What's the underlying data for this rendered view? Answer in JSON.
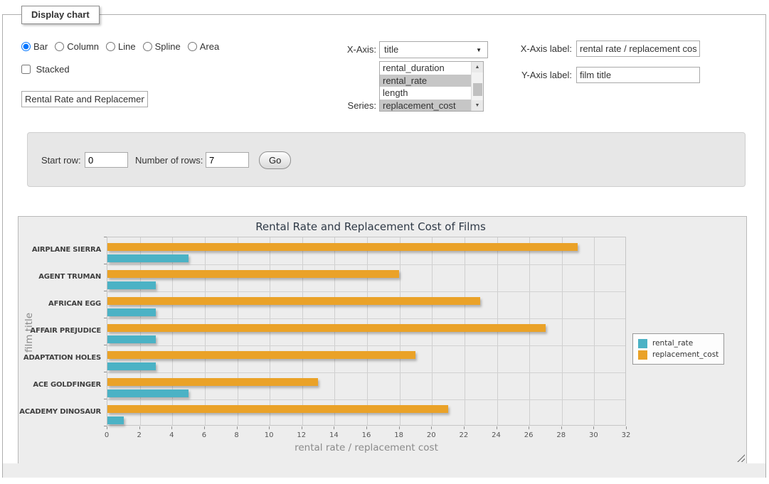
{
  "panel_legend": "Display chart",
  "icons": {
    "dropdown": "▼",
    "scroll_up": "▲",
    "scroll_down": "▼"
  },
  "controls": {
    "chart_types": [
      {
        "label": "Bar",
        "selected": true
      },
      {
        "label": "Column",
        "selected": false
      },
      {
        "label": "Line",
        "selected": false
      },
      {
        "label": "Spline",
        "selected": false
      },
      {
        "label": "Area",
        "selected": false
      }
    ],
    "stacked": {
      "label": "Stacked",
      "checked": false
    },
    "chart_title_input": {
      "value": "Rental Rate and Replacement Cost of Films"
    },
    "x_axis": {
      "label": "X-Axis:",
      "selected_option": "title"
    },
    "series_select": {
      "label": "Series:",
      "options": [
        {
          "label": "rental_duration",
          "selected": false
        },
        {
          "label": "rental_rate",
          "selected": true
        },
        {
          "label": "length",
          "selected": false
        },
        {
          "label": "replacement_cost",
          "selected": true
        }
      ]
    },
    "x_axis_label_field": {
      "label": "X-Axis label:",
      "value": "rental rate / replacement cost"
    },
    "y_axis_label_field": {
      "label": "Y-Axis label:",
      "value": "film title"
    }
  },
  "row_controls": {
    "start_row_label": "Start row:",
    "start_row_value": "0",
    "num_rows_label": "Number of rows:",
    "num_rows_value": "7",
    "go_label": "Go"
  },
  "chart_data": {
    "type": "bar",
    "orientation": "horizontal",
    "title": "Rental Rate and Replacement Cost of Films",
    "categories": [
      "AIRPLANE SIERRA",
      "AGENT TRUMAN",
      "AFRICAN EGG",
      "AFFAIR PREJUDICE",
      "ADAPTATION HOLES",
      "ACE GOLDFINGER",
      "ACADEMY DINOSAUR"
    ],
    "series": [
      {
        "name": "rental_rate",
        "color": "#4bb2c5",
        "values": [
          4.99,
          2.99,
          2.99,
          2.99,
          2.99,
          4.99,
          0.99
        ]
      },
      {
        "name": "replacement_cost",
        "color": "#eaa228",
        "values": [
          28.99,
          17.99,
          22.99,
          26.99,
          18.99,
          12.99,
          20.99
        ]
      }
    ],
    "bar_order_top_to_bottom": [
      "replacement_cost",
      "rental_rate"
    ],
    "xlabel": "rental rate / replacement cost",
    "ylabel": "film title",
    "xlim": [
      0,
      32
    ],
    "x_tick_step": 2,
    "x_ticks": [
      0,
      2,
      4,
      6,
      8,
      10,
      12,
      14,
      16,
      18,
      20,
      22,
      24,
      26,
      28,
      30,
      32
    ],
    "grid": true,
    "plot_background": "#ededed",
    "gridline_color": "#cfcfcf",
    "legend_position": "right"
  }
}
